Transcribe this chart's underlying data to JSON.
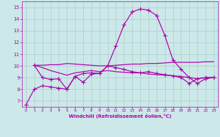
{
  "background_color": "#cce8e8",
  "grid_color": "#aacccc",
  "line_color": "#aa00aa",
  "xlabel": "Windchill (Refroidissement éolien,°C)",
  "xlabel_color": "#aa00aa",
  "tick_color": "#aa00aa",
  "ylim": [
    6.5,
    15.5
  ],
  "xlim": [
    -0.5,
    23.5
  ],
  "yticks": [
    7,
    8,
    9,
    10,
    11,
    12,
    13,
    14,
    15
  ],
  "xticks": [
    0,
    1,
    2,
    3,
    4,
    5,
    6,
    7,
    8,
    9,
    10,
    11,
    12,
    13,
    14,
    15,
    16,
    17,
    18,
    19,
    20,
    21,
    22,
    23
  ],
  "series": [
    {
      "x": [
        0,
        1,
        2,
        3,
        4,
        5,
        6,
        7,
        8,
        9,
        10,
        11,
        12,
        13,
        14,
        15,
        16,
        17,
        18,
        19,
        20,
        21,
        22,
        23
      ],
      "y": [
        6.7,
        8.0,
        8.3,
        8.2,
        8.1,
        8.0,
        9.1,
        9.35,
        9.4,
        9.35,
        10.0,
        11.7,
        13.5,
        14.6,
        14.85,
        14.75,
        14.3,
        12.6,
        10.5,
        9.7,
        9.0,
        8.5,
        8.9,
        9.0
      ],
      "marker": "+",
      "markersize": 4,
      "lw": 0.9
    },
    {
      "x": [
        1,
        2,
        3,
        4,
        5,
        6,
        7,
        8,
        9,
        10,
        11,
        12,
        13,
        14,
        15,
        16,
        17,
        18,
        19,
        20,
        21,
        22,
        23
      ],
      "y": [
        10.05,
        10.05,
        10.1,
        10.1,
        10.2,
        10.15,
        10.1,
        10.05,
        10.0,
        10.0,
        10.05,
        10.1,
        10.15,
        10.15,
        10.2,
        10.2,
        10.25,
        10.3,
        10.3,
        10.3,
        10.3,
        10.35,
        10.35
      ],
      "marker": null,
      "markersize": 0,
      "lw": 0.9
    },
    {
      "x": [
        1,
        2,
        3,
        4,
        5,
        6,
        7,
        8,
        9,
        10,
        11,
        12,
        13,
        14,
        15,
        16,
        17,
        18,
        19,
        20,
        21,
        22,
        23
      ],
      "y": [
        10.05,
        9.85,
        9.6,
        9.4,
        9.2,
        9.4,
        9.5,
        9.6,
        9.5,
        9.6,
        9.5,
        9.45,
        9.4,
        9.4,
        9.3,
        9.25,
        9.2,
        9.15,
        9.1,
        9.0,
        8.9,
        9.0,
        9.0
      ],
      "marker": null,
      "markersize": 0,
      "lw": 0.9
    },
    {
      "x": [
        1,
        2,
        3,
        4,
        5,
        6,
        7,
        8,
        9,
        10,
        11,
        12,
        13,
        14,
        15,
        16,
        17,
        18,
        19,
        20,
        21,
        22,
        23
      ],
      "y": [
        10.05,
        9.0,
        8.85,
        8.9,
        8.0,
        9.1,
        8.6,
        9.3,
        9.35,
        10.0,
        9.85,
        9.7,
        9.5,
        9.4,
        9.5,
        9.35,
        9.25,
        9.15,
        9.0,
        8.5,
        8.9,
        9.0,
        9.0
      ],
      "marker": "+",
      "markersize": 4,
      "lw": 0.9
    }
  ]
}
